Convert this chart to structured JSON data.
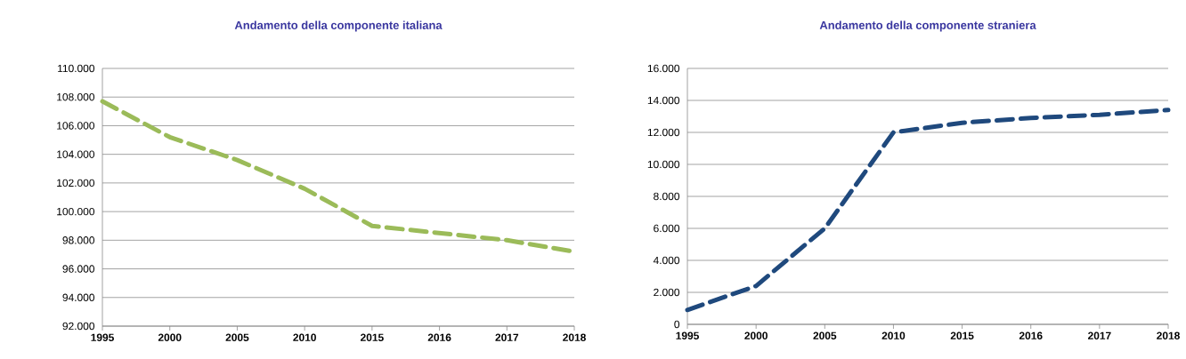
{
  "chart_data": [
    {
      "type": "line",
      "title": "Andamento della componente italiana",
      "categories": [
        "1995",
        "2000",
        "2005",
        "2010",
        "2015",
        "2016",
        "2017",
        "2018"
      ],
      "series": [
        {
          "color": "#9bbb59",
          "values": [
            107700,
            105200,
            103600,
            101600,
            99000,
            98500,
            98000,
            97200
          ]
        }
      ],
      "ylim": [
        92000,
        110000
      ],
      "yticks": [
        {
          "value": 92000,
          "label": "92.000"
        },
        {
          "value": 94000,
          "label": "94.000"
        },
        {
          "value": 96000,
          "label": "96.000"
        },
        {
          "value": 98000,
          "label": "98.000"
        },
        {
          "value": 100000,
          "label": "100.000"
        },
        {
          "value": 102000,
          "label": "102.000"
        },
        {
          "value": 104000,
          "label": "104.000"
        },
        {
          "value": 106000,
          "label": "106.000"
        },
        {
          "value": 108000,
          "label": "108.000"
        },
        {
          "value": 110000,
          "label": "110.000"
        }
      ],
      "grid": "y",
      "line_style": "dashed"
    },
    {
      "type": "line",
      "title": "Andamento della componente straniera",
      "categories": [
        "1995",
        "2000",
        "2005",
        "2010",
        "2015",
        "2016",
        "2017",
        "2018"
      ],
      "series": [
        {
          "color": "#1f497d",
          "values": [
            900,
            2400,
            6000,
            12000,
            12600,
            12900,
            13100,
            13400
          ]
        }
      ],
      "ylim": [
        0,
        16000
      ],
      "yticks": [
        0,
        {
          "value": 2000,
          "label": "2.000"
        },
        {
          "value": 4000,
          "label": "4.000"
        },
        {
          "value": 6000,
          "label": "6.000"
        },
        {
          "value": 8000,
          "label": "8.000"
        },
        {
          "value": 10000,
          "label": "10.000"
        },
        {
          "value": 12000,
          "label": "12.000"
        },
        {
          "value": 14000,
          "label": "14.000"
        },
        {
          "value": 16000,
          "label": "16.000"
        }
      ],
      "grid": "y",
      "line_style": "dashed"
    }
  ]
}
